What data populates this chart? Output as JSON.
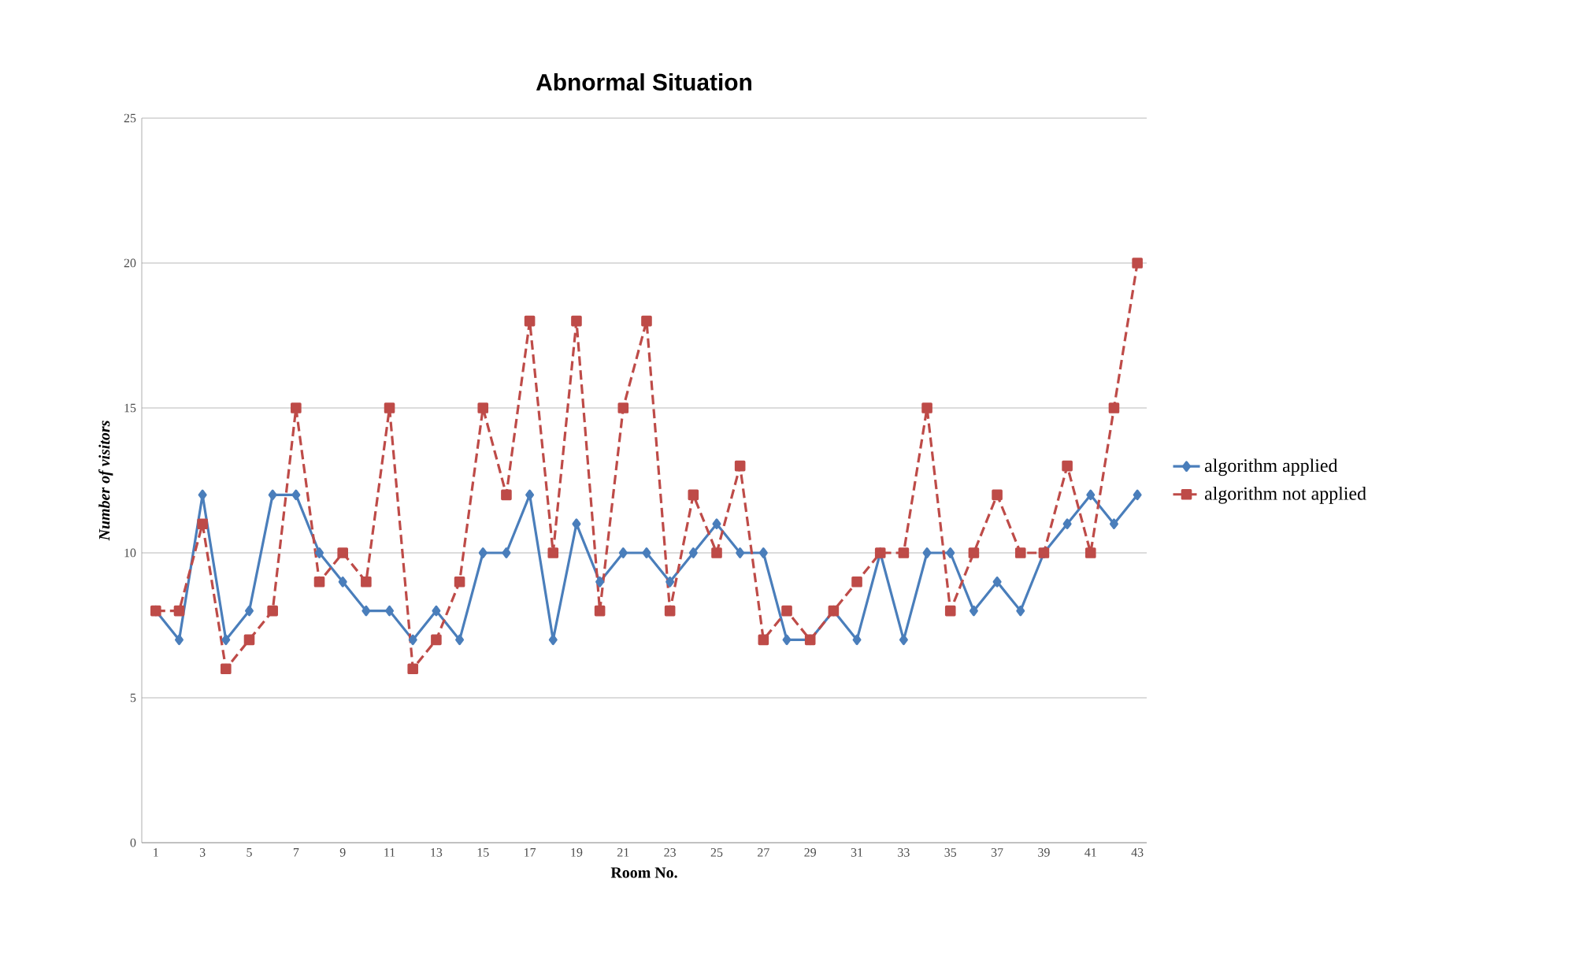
{
  "chart_data": {
    "type": "line",
    "title": "Abnormal Situation",
    "xlabel": "Room No.",
    "ylabel": "Number of visitors",
    "categories": [
      "1",
      null,
      "3",
      null,
      "5",
      null,
      "7",
      null,
      "9",
      null,
      "11",
      null,
      "13",
      null,
      "15",
      null,
      "17",
      null,
      "19",
      null,
      "21",
      null,
      "23",
      null,
      "25",
      null,
      "27",
      null,
      "29",
      null,
      "31",
      null,
      "33",
      null,
      "35",
      null,
      "37",
      null,
      "39",
      null,
      "41",
      null,
      "43"
    ],
    "series": [
      {
        "name": "algorithm applied",
        "color": "#4a7ebb",
        "marker": "diamond",
        "line_style": "solid",
        "values": [
          8,
          7,
          12,
          7,
          8,
          12,
          12,
          10,
          9,
          8,
          8,
          7,
          8,
          7,
          10,
          10,
          12,
          7,
          11,
          9,
          10,
          10,
          9,
          10,
          11,
          10,
          10,
          7,
          7,
          8,
          7,
          10,
          7,
          10,
          10,
          8,
          9,
          8,
          10,
          11,
          12,
          11,
          12
        ]
      },
      {
        "name": "algorithm not applied",
        "color": "#be4b48",
        "marker": "square",
        "line_style": "dashed",
        "values": [
          8,
          8,
          11,
          6,
          7,
          8,
          15,
          9,
          10,
          9,
          15,
          6,
          7,
          9,
          15,
          12,
          18,
          10,
          18,
          8,
          15,
          18,
          8,
          12,
          10,
          13,
          7,
          8,
          7,
          8,
          9,
          10,
          10,
          15,
          8,
          10,
          12,
          10,
          10,
          13,
          10,
          15,
          20
        ]
      }
    ],
    "ylim": [
      0,
      25
    ],
    "yticks": [
      0,
      5,
      10,
      15,
      20,
      25
    ],
    "grid": "y",
    "legend": "right"
  }
}
